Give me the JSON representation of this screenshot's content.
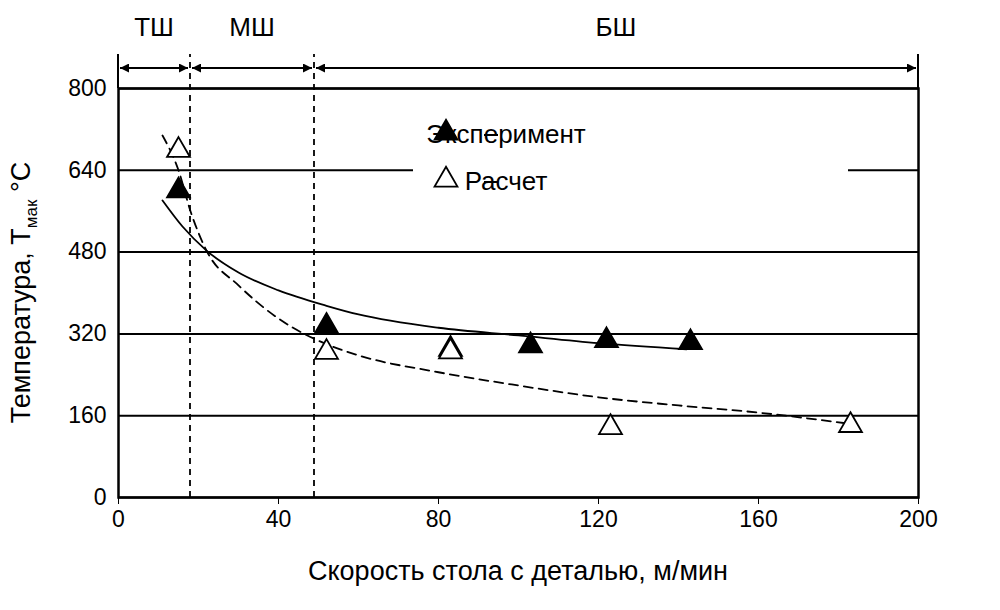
{
  "chart_data": {
    "type": "scatter",
    "x_label": "Скорость стола с деталью, м/мин",
    "y_label": {
      "text": "Температура, T",
      "subscript": "мак",
      "suffix": " °C"
    },
    "xlim": [
      0,
      200
    ],
    "xticks": [
      0,
      40,
      80,
      120,
      160,
      200
    ],
    "ylim": [
      0,
      800
    ],
    "yticks": [
      0,
      160,
      320,
      480,
      640,
      800
    ],
    "grid": true,
    "legend": "upper center",
    "zones": [
      {
        "label": "ТШ",
        "from": 0,
        "to": 18
      },
      {
        "label": "МШ",
        "from": 18,
        "to": 49
      },
      {
        "label": "БШ",
        "from": 49,
        "to": 200
      }
    ],
    "series": [
      {
        "name": "Эксперимент",
        "type": "scatter",
        "marker": "triangle",
        "color": "#000000",
        "x": [
          15,
          52,
          83,
          103,
          122,
          143
        ],
        "values": [
          600,
          335,
          290,
          297,
          307,
          303
        ]
      },
      {
        "name": "Расчет",
        "type": "scatter",
        "marker": "open-triangle",
        "color": "#000000",
        "x": [
          15,
          52,
          83,
          123,
          183
        ],
        "values": [
          679,
          284,
          285,
          137,
          141
        ]
      },
      {
        "type": "line",
        "line_style": "solid",
        "color": "#000000",
        "x": [
          11,
          16,
          22,
          30,
          40,
          52,
          60,
          80,
          100,
          120,
          142
        ],
        "values": [
          581,
          530,
          483,
          440,
          405,
          375,
          358,
          332,
          317,
          302,
          290
        ]
      },
      {
        "type": "line",
        "line_style": "dashed",
        "color": "#000000",
        "x": [
          11,
          15,
          18,
          22,
          30,
          40,
          52,
          60,
          80,
          100,
          120,
          140,
          160,
          182
        ],
        "values": [
          708,
          640,
          560,
          483,
          415,
          350,
          300,
          278,
          245,
          219,
          196,
          180,
          166,
          145
        ]
      }
    ]
  }
}
